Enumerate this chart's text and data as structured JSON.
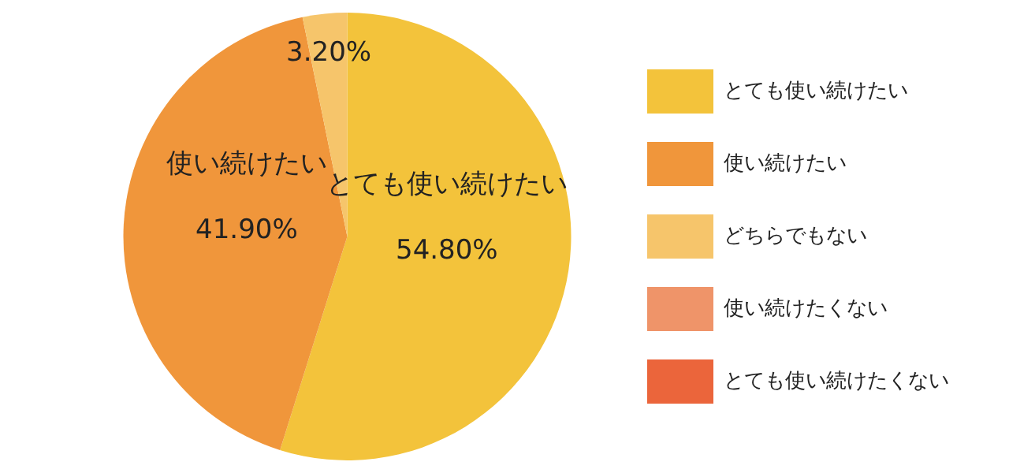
{
  "chart_data": {
    "type": "pie",
    "categories": [
      "とても使い続けたい",
      "使い続けたい",
      "どちらでもない",
      "使い続けたくない",
      "とても使い続けたくない"
    ],
    "values": [
      54.8,
      41.9,
      3.2,
      0,
      0
    ],
    "colors": [
      "#f3c33b",
      "#f0963b",
      "#f6c56b",
      "#ef9469",
      "#eb653b"
    ],
    "value_labels": [
      "54.80%",
      "41.90%",
      "3.20%",
      null,
      null
    ],
    "annotations": [
      {
        "text": "とても使い続けたい",
        "x": "とても使い続けたい"
      },
      {
        "text": "使い続けたい",
        "x": "使い続けたい"
      }
    ],
    "legend": "right"
  }
}
